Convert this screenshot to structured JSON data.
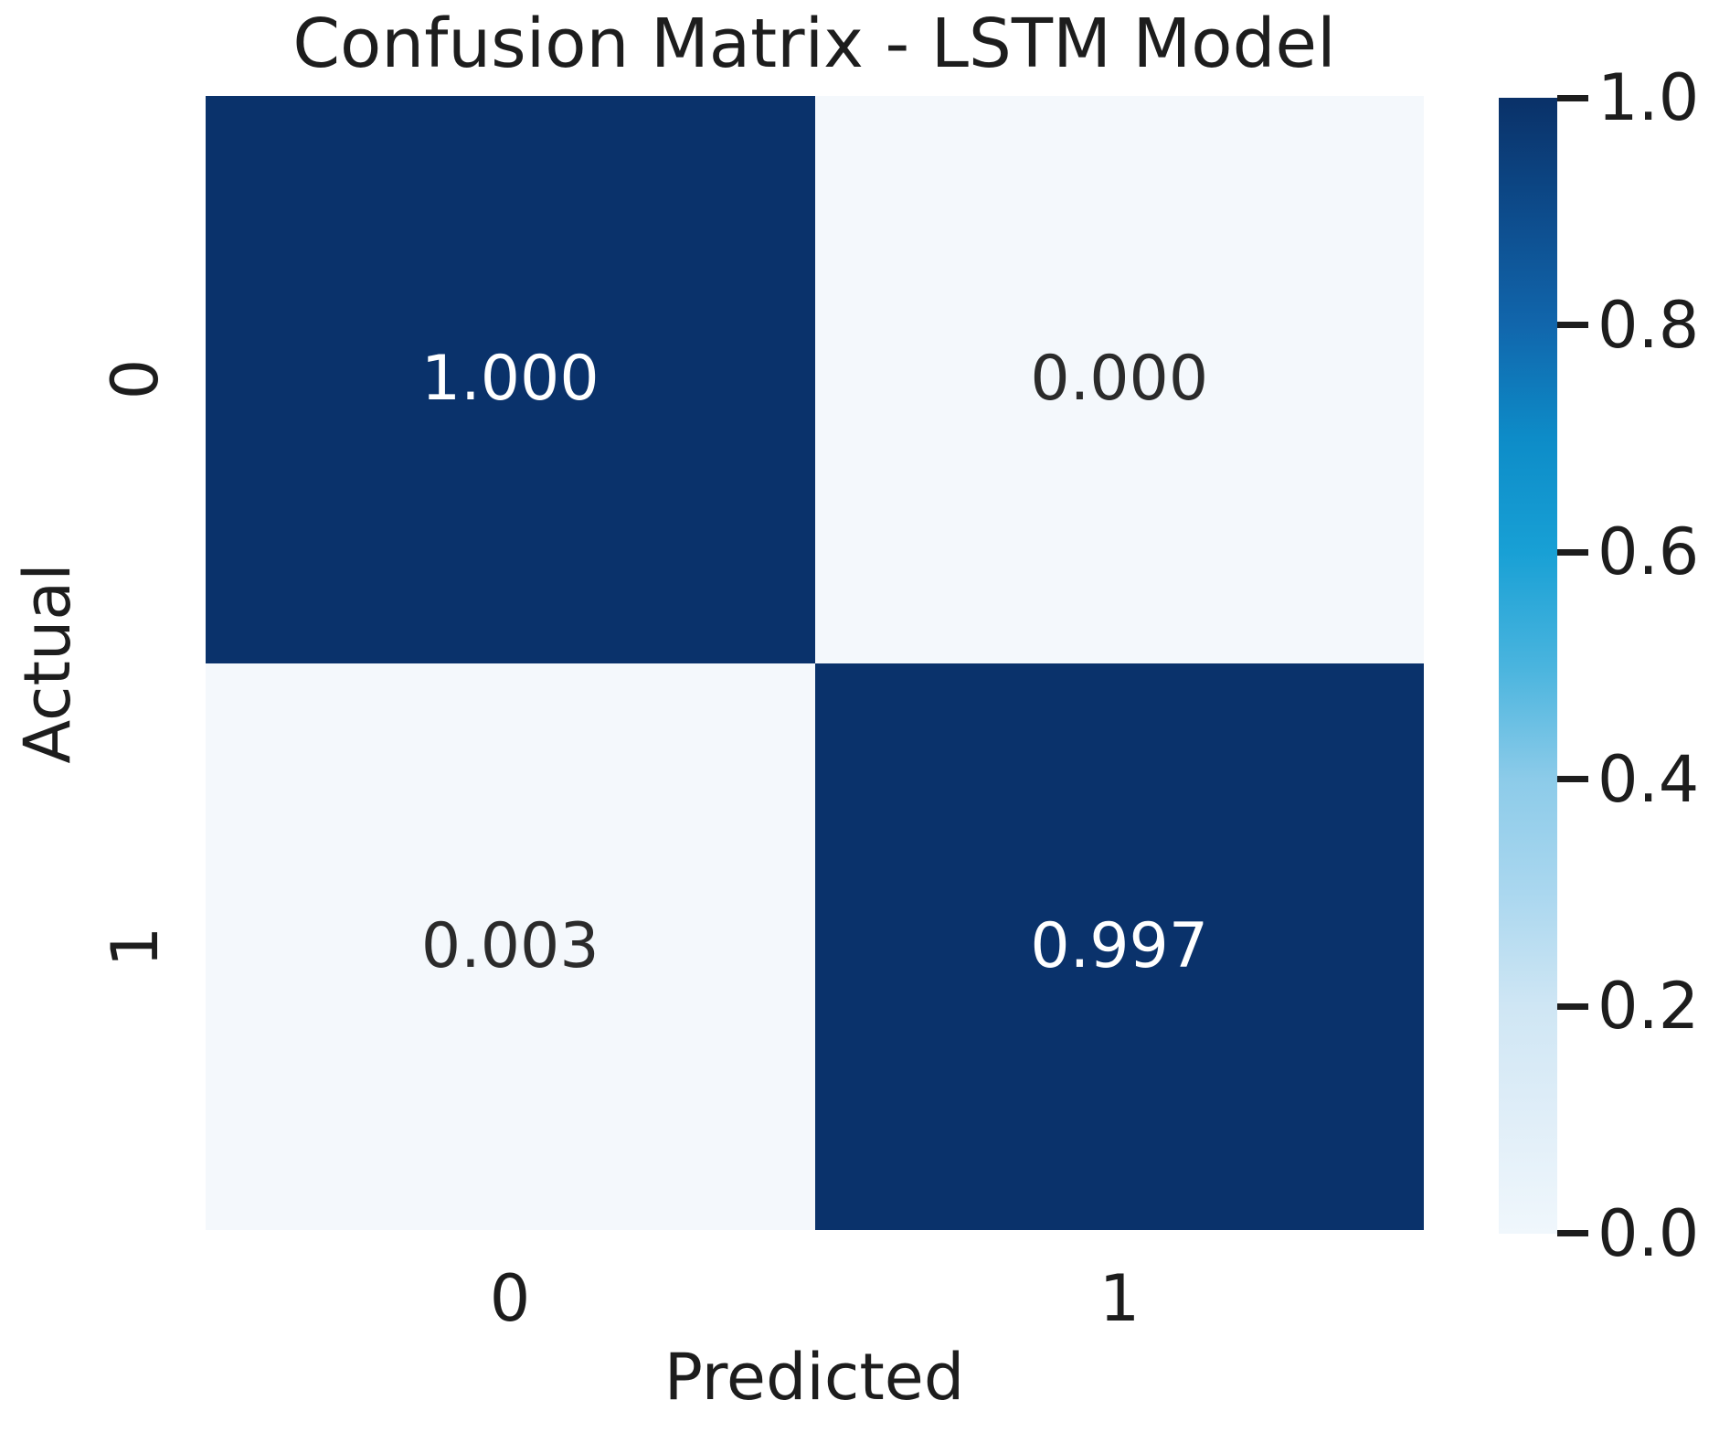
{
  "chart_data": {
    "type": "heatmap",
    "title": "Confusion Matrix - LSTM Model",
    "xlabel": "Predicted",
    "ylabel": "Actual",
    "x_tick_labels": [
      "0",
      "1"
    ],
    "y_tick_labels": [
      "0",
      "1"
    ],
    "values": [
      [
        1.0,
        0.0
      ],
      [
        0.003,
        0.997
      ]
    ],
    "cell_labels": [
      [
        "1.000",
        "0.000"
      ],
      [
        "0.003",
        "0.997"
      ]
    ],
    "colormap": "Blues",
    "colorbar": {
      "tick_labels": [
        "1.0",
        "0.8",
        "0.6",
        "0.4",
        "0.2",
        "0.0"
      ],
      "range": [
        0.0,
        1.0
      ],
      "position": "right"
    },
    "grid": false,
    "legend": false
  },
  "colors": {
    "cell_high": "#0a326b",
    "cell_low": "#f4f8fc",
    "text_on_dark": "#ffffff",
    "text_on_light": "#2b2b2b",
    "axis_text": "#1d1d1d",
    "background": "#ffffff",
    "colorbar_stops": [
      "#f0f7fc",
      "#e0eef8",
      "#cfe6f4",
      "#aad7ef",
      "#8ccbe9",
      "#49b4de",
      "#18a0d5",
      "#0d8cc8",
      "#1166ac",
      "#0d4b8b",
      "#0a3168"
    ]
  }
}
